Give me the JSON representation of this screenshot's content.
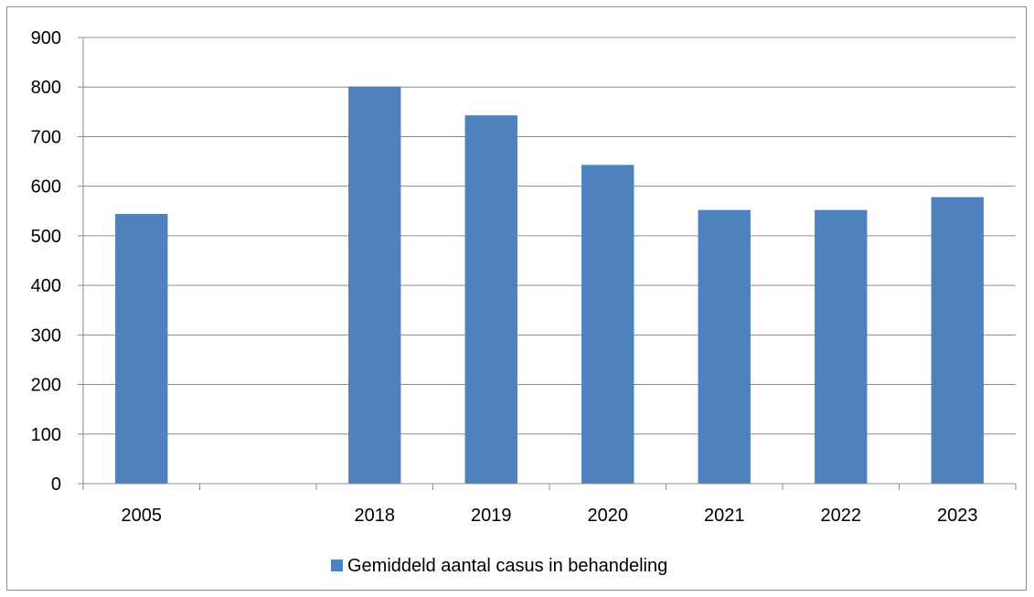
{
  "chart_data": {
    "type": "bar",
    "categories": [
      "2005",
      "",
      "2018",
      "2019",
      "2020",
      "2021",
      "2022",
      "2023"
    ],
    "series": [
      {
        "name": "Gemiddeld aantal casus in behandeling",
        "values": [
          544,
          null,
          801,
          743,
          643,
          552,
          552,
          578
        ],
        "color": "#4f81bd"
      }
    ],
    "ylim": [
      0,
      900
    ],
    "yticks": [
      "0",
      "100",
      "200",
      "300",
      "400",
      "500",
      "600",
      "700",
      "800",
      "900"
    ],
    "grid": true,
    "legend_position": "bottom"
  }
}
